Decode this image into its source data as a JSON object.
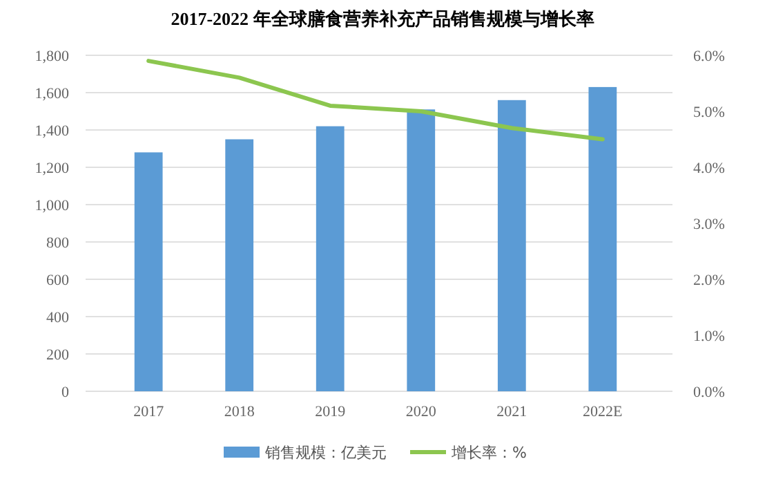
{
  "chart_data": {
    "type": "bar",
    "title": "2017-2022 年全球膳食营养补充产品销售规模与增长率",
    "categories": [
      "2017",
      "2018",
      "2019",
      "2020",
      "2021",
      "2022E"
    ],
    "series": [
      {
        "name": "销售规模：亿美元",
        "color": "#5b9bd5",
        "values": [
          1280,
          1350,
          1420,
          1510,
          1560,
          1630
        ]
      },
      {
        "name": "增长率：%",
        "type": "line",
        "axis": "y2",
        "color": "#8cc64f",
        "values": [
          5.9,
          5.6,
          5.1,
          5.0,
          4.7,
          4.5
        ]
      }
    ],
    "ylim": [
      0,
      1800
    ],
    "yticks": [
      0,
      {
        "value": 200,
        "label": "200"
      },
      {
        "value": 400,
        "label": "400"
      },
      {
        "value": 600,
        "label": "600"
      },
      {
        "value": 800,
        "label": "800"
      },
      {
        "value": 1000,
        "label": "1,000"
      },
      {
        "value": 1200,
        "label": "1,200"
      },
      {
        "value": 1400,
        "label": "1,400"
      },
      {
        "value": 1600,
        "label": "1,600"
      },
      {
        "value": 1800,
        "label": "1,800"
      }
    ],
    "y2lim": [
      0,
      6
    ],
    "y2ticks": [
      {
        "value": 0,
        "label": "0.0%"
      },
      {
        "value": 1,
        "label": "1.0%"
      },
      {
        "value": 2,
        "label": "2.0%"
      },
      {
        "value": 3,
        "label": "3.0%"
      },
      {
        "value": 4,
        "label": "4.0%"
      },
      {
        "value": 5,
        "label": "5.0%"
      },
      {
        "value": 6,
        "label": "6.0%"
      }
    ],
    "grid": "y",
    "legend": "bottom",
    "marker": "none",
    "line_style": "solid"
  }
}
